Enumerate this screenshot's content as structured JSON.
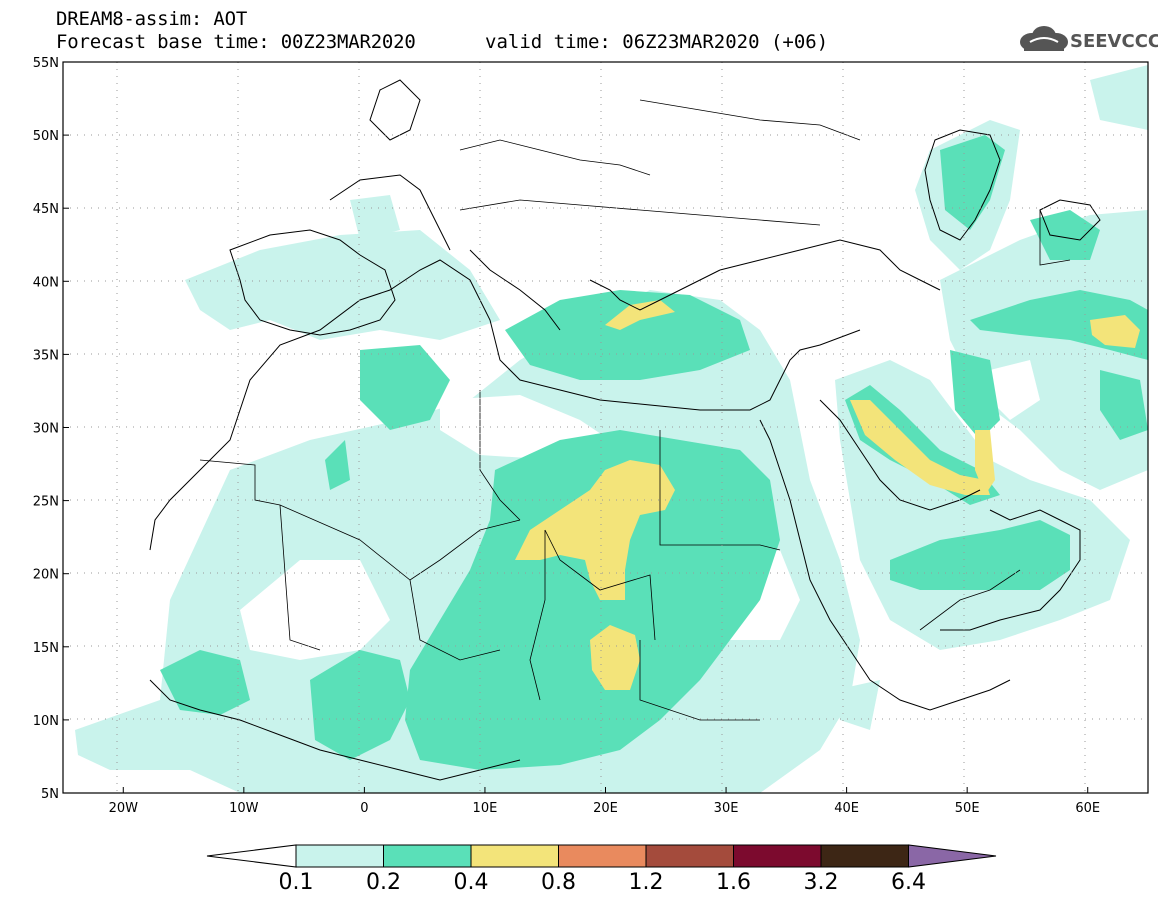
{
  "header": {
    "title": "DREAM8-assim: AOT",
    "base_time": "Forecast base time: 00Z23MAR2020",
    "valid_time": "valid time: 06Z23MAR2020 (+06)",
    "logo_text": "SEEVCCC"
  },
  "map": {
    "lat_ticks": [
      "55N",
      "50N",
      "45N",
      "40N",
      "35N",
      "30N",
      "25N",
      "20N",
      "15N",
      "10N",
      "5N"
    ],
    "lon_ticks": [
      "20W",
      "10W",
      "0",
      "10E",
      "20E",
      "30E",
      "40E",
      "50E",
      "60E"
    ],
    "extent": {
      "lon_min": -25,
      "lon_max": 65,
      "lat_min": 5,
      "lat_max": 55
    }
  },
  "legend": {
    "labels": [
      "0.1",
      "0.2",
      "0.4",
      "0.8",
      "1.2",
      "1.6",
      "3.2",
      "6.4"
    ],
    "colors": [
      "#ffffff",
      "#c9f3ec",
      "#5ae0b8",
      "#f3e47a",
      "#e98a5e",
      "#a44b3c",
      "#7c0a2e",
      "#3d2615",
      "#8a67a6"
    ]
  }
}
